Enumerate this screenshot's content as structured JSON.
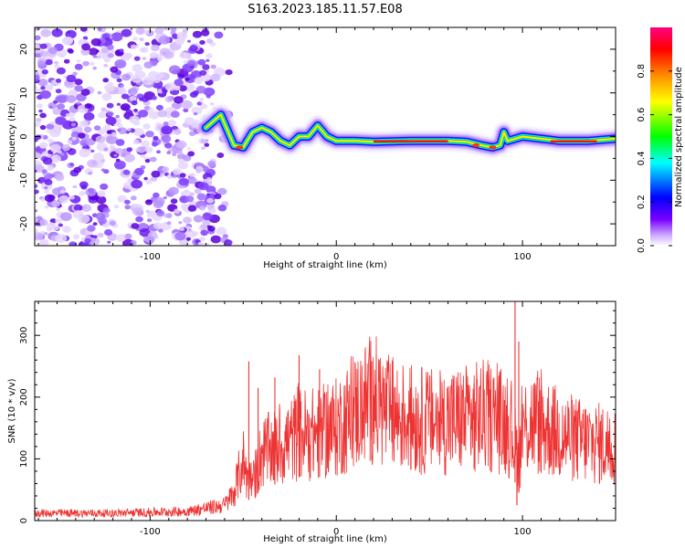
{
  "figure_title": "S163.2023.185.11.57.E08",
  "chart_data": [
    {
      "type": "heatmap",
      "xlabel": "Height of straight line (km)",
      "ylabel": "Frequency (Hz)",
      "xlim": [
        -162,
        150
      ],
      "ylim": [
        -25,
        25
      ],
      "x_ticks": [
        -100,
        0,
        100
      ],
      "y_ticks": [
        -20,
        -10,
        0,
        10,
        20
      ],
      "colorbar": {
        "label": "Normalized spectral amplitude",
        "range": [
          0,
          1
        ],
        "ticks": [
          0.0,
          0.2,
          0.4,
          0.6,
          0.8
        ],
        "colors": [
          "#ffffff",
          "#b38cff",
          "#6a00ff",
          "#0000ff",
          "#00ffff",
          "#00ff00",
          "#ffff00",
          "#ff8000",
          "#ff0000",
          "#ff0080"
        ]
      },
      "ridge": {
        "x": [
          -70,
          -62,
          -55,
          -50,
          -45,
          -40,
          -35,
          -30,
          -25,
          -20,
          -15,
          -10,
          -5,
          0,
          10,
          20,
          40,
          60,
          70,
          78,
          84,
          88,
          90,
          92,
          96,
          100,
          110,
          120,
          135,
          150
        ],
        "y": [
          2,
          5,
          -2,
          -2.5,
          1,
          2,
          1,
          -1,
          -2,
          0,
          0,
          2.5,
          0,
          -1,
          -1,
          -1.2,
          -1,
          -1,
          -1.2,
          -2,
          -2.5,
          -2,
          1,
          -1,
          -0.5,
          0,
          -0.5,
          -1,
          -1,
          -0.5
        ]
      },
      "noise_region_end_km": -65
    },
    {
      "type": "line",
      "xlabel": "Height of straight line (km)",
      "ylabel": "SNR (10 * v/v)",
      "xlim": [
        -162,
        150
      ],
      "ylim": [
        0,
        355
      ],
      "x_ticks": [
        -100,
        0,
        100
      ],
      "y_ticks": [
        0,
        100,
        200,
        300
      ],
      "series": [
        {
          "color": "#ee3333",
          "envelope_x": [
            -162,
            -120,
            -80,
            -60,
            -55,
            -50,
            -48,
            -45,
            -40,
            -30,
            -20,
            -10,
            0,
            10,
            20,
            25,
            30,
            40,
            50,
            60,
            70,
            80,
            90,
            95,
            98,
            100,
            105,
            110,
            120,
            130,
            140,
            150
          ],
          "envelope_y": [
            12,
            12,
            15,
            25,
            45,
            100,
            70,
            60,
            110,
            120,
            140,
            140,
            150,
            175,
            200,
            180,
            170,
            165,
            160,
            160,
            165,
            170,
            160,
            140,
            90,
            150,
            160,
            155,
            140,
            130,
            125,
            120
          ],
          "spikes": [
            {
              "x": -47,
              "y": 258
            },
            {
              "x": -42,
              "y": 215
            },
            {
              "x": -33,
              "y": 232
            },
            {
              "x": -20,
              "y": 268
            },
            {
              "x": -9,
              "y": 245
            },
            {
              "x": 19,
              "y": 258
            },
            {
              "x": 40,
              "y": 215
            },
            {
              "x": 74,
              "y": 222
            },
            {
              "x": 96,
              "y": 355
            },
            {
              "x": 98,
              "y": 290
            },
            {
              "x": 110,
              "y": 215
            }
          ]
        }
      ]
    }
  ]
}
